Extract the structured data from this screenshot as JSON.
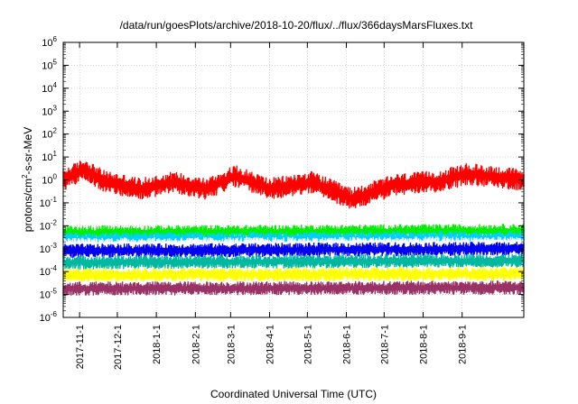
{
  "chart_data": {
    "type": "line",
    "title": "/data/run/goesPlots/archive/2018-10-20/flux/../flux/366daysMarsFluxes.txt",
    "xlabel": "Coordinated Universal Time (UTC)",
    "ylabel": {
      "pre": "protons/cm",
      "sup": "2",
      "post": "-s-sr-MeV"
    },
    "y_scale": "log",
    "ylim_exponent": [
      -6,
      6
    ],
    "yticks": [
      {
        "base": "10",
        "exp": "-6"
      },
      {
        "base": "10",
        "exp": "-5"
      },
      {
        "base": "10",
        "exp": "-4"
      },
      {
        "base": "10",
        "exp": "-3"
      },
      {
        "base": "10",
        "exp": "-2"
      },
      {
        "base": "10",
        "exp": "-1"
      },
      {
        "base": "10",
        "exp": "0"
      },
      {
        "base": "10",
        "exp": "1"
      },
      {
        "base": "10",
        "exp": "2"
      },
      {
        "base": "10",
        "exp": "3"
      },
      {
        "base": "10",
        "exp": "4"
      },
      {
        "base": "10",
        "exp": "5"
      },
      {
        "base": "10",
        "exp": "6"
      }
    ],
    "xlim": [
      "2017-10-19",
      "2018-10-20"
    ],
    "xticks": [
      "2017-11-1",
      "2017-12-1",
      "2018-1-1",
      "2018-2-1",
      "2018-3-1",
      "2018-4-1",
      "2018-5-1",
      "2018-6-1",
      "2018-7-1",
      "2018-8-1",
      "2018-9-1"
    ],
    "grid": true,
    "series": [
      {
        "color": "#ff0000",
        "level": [
          [
            "2017-10-19",
            1.0
          ],
          [
            "2017-11-05",
            3.0
          ],
          [
            "2017-11-20",
            0.9
          ],
          [
            "2017-12-20",
            0.4
          ],
          [
            "2018-01-15",
            0.8
          ],
          [
            "2018-02-10",
            0.4
          ],
          [
            "2018-03-05",
            1.5
          ],
          [
            "2018-04-01",
            0.4
          ],
          [
            "2018-05-05",
            0.8
          ],
          [
            "2018-06-05",
            0.15
          ],
          [
            "2018-07-10",
            0.6
          ],
          [
            "2018-08-15",
            0.9
          ],
          [
            "2018-09-05",
            1.8
          ],
          [
            "2018-10-20",
            1.0
          ]
        ]
      },
      {
        "color": "#00ee00",
        "level": [
          [
            "2017-10-19",
            0.005
          ],
          [
            "2018-10-20",
            0.006
          ]
        ]
      },
      {
        "color": "#00d0ff",
        "level": [
          [
            "2017-10-19",
            0.0025
          ],
          [
            "2018-10-20",
            0.003
          ]
        ]
      },
      {
        "color": "#ffffff",
        "level": [
          [
            "2017-10-19",
            0.0015
          ],
          [
            "2018-10-20",
            0.0017
          ]
        ]
      },
      {
        "color": "#0000ee",
        "level": [
          [
            "2017-10-19",
            0.0008
          ],
          [
            "2018-10-20",
            0.001
          ]
        ]
      },
      {
        "color": "#00b8a0",
        "level": [
          [
            "2017-10-19",
            0.00025
          ],
          [
            "2018-10-20",
            0.0003
          ]
        ]
      },
      {
        "color": "#ffff00",
        "level": [
          [
            "2017-10-19",
            7e-05
          ],
          [
            "2018-10-20",
            8e-05
          ]
        ]
      },
      {
        "color": "#993366",
        "level": [
          [
            "2017-10-19",
            1.8e-05
          ],
          [
            "2018-10-20",
            2e-05
          ]
        ]
      }
    ]
  }
}
